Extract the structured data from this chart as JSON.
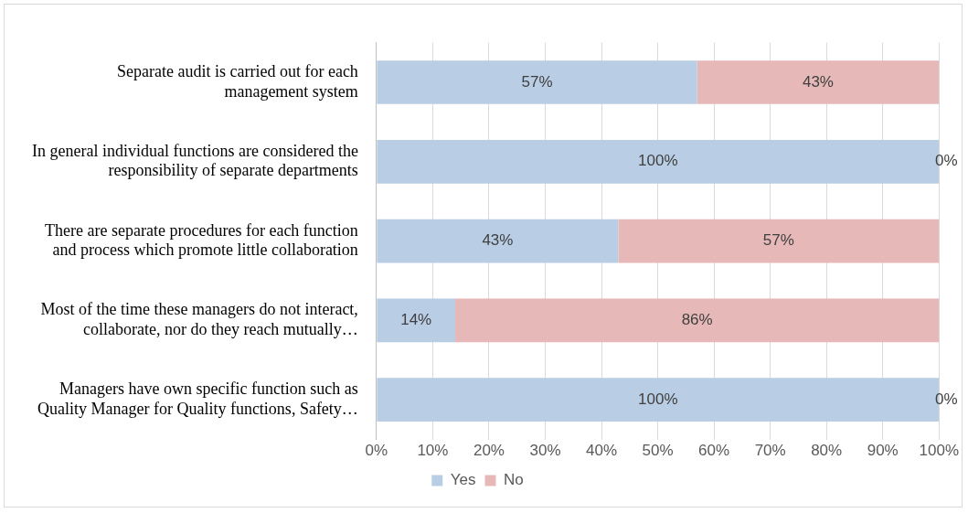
{
  "chart_data": {
    "type": "bar",
    "orientation": "horizontal",
    "stacked": true,
    "categories": [
      "Separate audit is carried out for each\nmanagement system",
      "In general individual functions are considered the\nresponsibility of separate departments",
      "There are separate procedures for each function\nand process which promote little collaboration",
      "Most of the time these managers do not interact,\ncollaborate, nor do they reach mutually…",
      "Managers have own specific function such as\nQuality Manager for Quality functions, Safety…"
    ],
    "series": [
      {
        "name": "Yes",
        "color": "#b9cde5",
        "values": [
          57,
          100,
          43,
          14,
          100
        ]
      },
      {
        "name": "No",
        "color": "#e6b9b8",
        "values": [
          43,
          0,
          57,
          86,
          0
        ]
      }
    ],
    "xlim": [
      0,
      100
    ],
    "xticks": [
      {
        "value": 0,
        "label": "0%"
      },
      {
        "value": 10,
        "label": "10%"
      },
      {
        "value": 20,
        "label": "20%"
      },
      {
        "value": 30,
        "label": "30%"
      },
      {
        "value": 40,
        "label": "40%"
      },
      {
        "value": 50,
        "label": "50%"
      },
      {
        "value": 60,
        "label": "60%"
      },
      {
        "value": 70,
        "label": "70%"
      },
      {
        "value": 80,
        "label": "80%"
      },
      {
        "value": 90,
        "label": "90%"
      },
      {
        "value": 100,
        "label": "100%"
      }
    ],
    "value_labels": [
      [
        "57%",
        "100%",
        "43%",
        "14%",
        "100%"
      ],
      [
        "43%",
        "0%",
        "57%",
        "86%",
        "0%"
      ]
    ],
    "grid": "x",
    "legend": "bottom"
  }
}
